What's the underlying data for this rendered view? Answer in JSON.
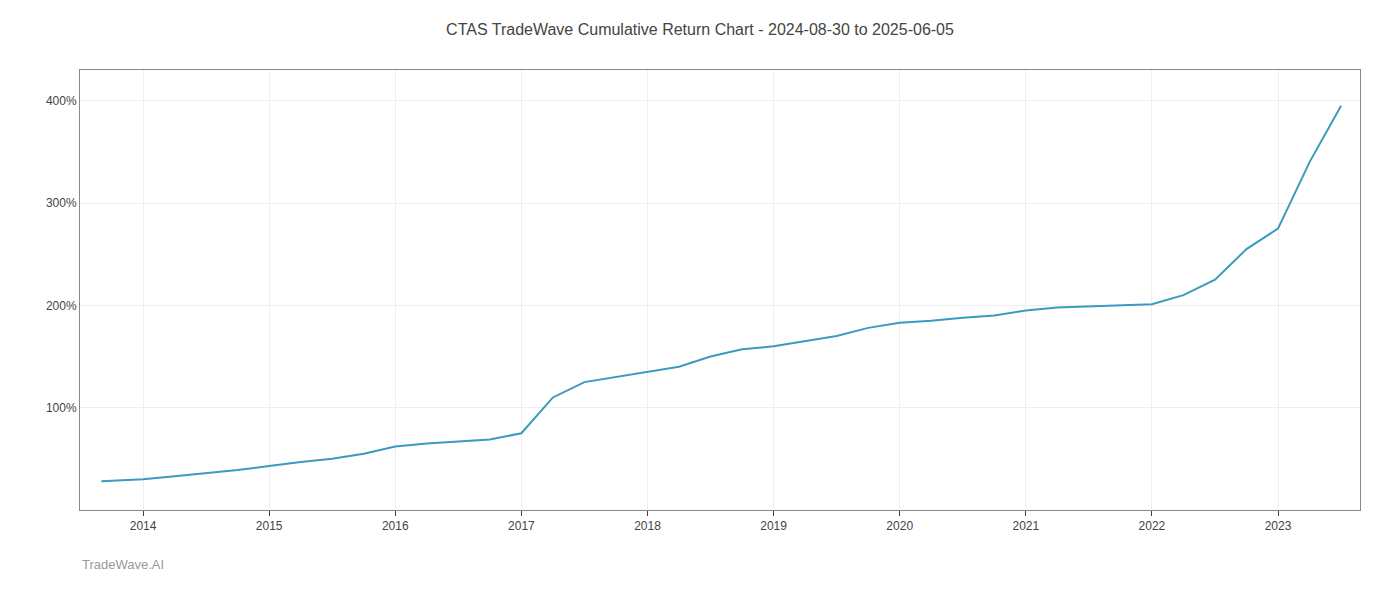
{
  "chart_data": {
    "type": "line",
    "title": "CTAS TradeWave Cumulative Return Chart - 2024-08-30 to 2025-06-05",
    "annotations": [
      "TradeWave.AI"
    ],
    "x": [
      2013.67,
      2014.0,
      2014.25,
      2014.5,
      2014.75,
      2015.0,
      2015.25,
      2015.5,
      2015.75,
      2016.0,
      2016.25,
      2016.5,
      2016.75,
      2017.0,
      2017.25,
      2017.5,
      2017.75,
      2018.0,
      2018.25,
      2018.5,
      2018.75,
      2019.0,
      2019.25,
      2019.5,
      2019.75,
      2020.0,
      2020.25,
      2020.5,
      2020.75,
      2021.0,
      2021.25,
      2021.5,
      2021.75,
      2022.0,
      2022.25,
      2022.5,
      2022.75,
      2023.0,
      2023.25,
      2023.5
    ],
    "values": [
      28,
      30,
      33,
      36,
      39,
      43,
      47,
      50,
      55,
      62,
      65,
      67,
      69,
      75,
      110,
      125,
      130,
      135,
      140,
      150,
      157,
      160,
      165,
      170,
      178,
      183,
      185,
      188,
      190,
      195,
      198,
      199,
      200,
      201,
      210,
      225,
      255,
      275,
      340,
      395
    ],
    "color": "#3a9abf",
    "xlim": [
      2013.5,
      2023.65
    ],
    "xticks": [
      2014,
      2015,
      2016,
      2017,
      2018,
      2019,
      2020,
      2021,
      2022,
      2023
    ],
    "ylim": [
      0,
      430
    ],
    "yticks": [
      {
        "value": 100,
        "label": "100%"
      },
      {
        "value": 200,
        "label": "200%"
      },
      {
        "value": 300,
        "label": "300%"
      },
      {
        "value": 400,
        "label": "400%"
      }
    ],
    "grid": true
  }
}
